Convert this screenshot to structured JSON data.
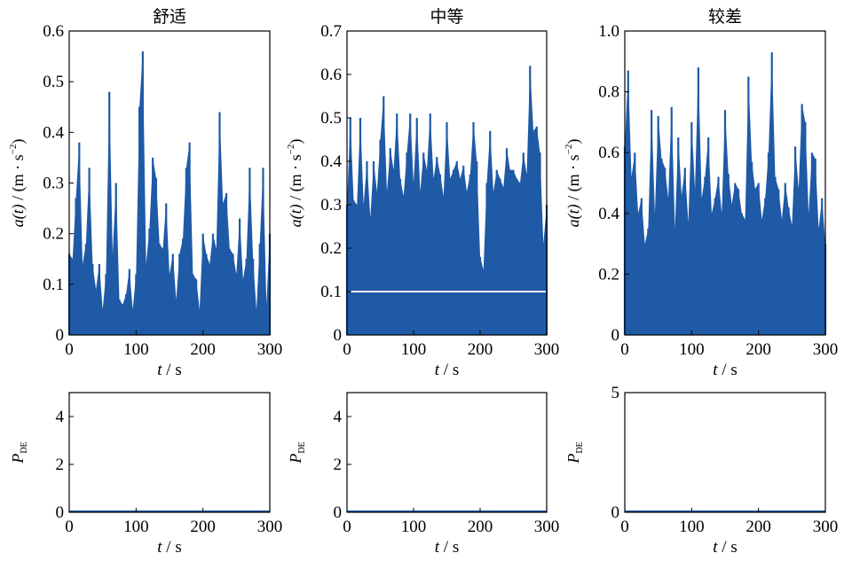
{
  "colors": {
    "series": "#1f5aa6",
    "threshold": "#ffffff",
    "axis": "#000000"
  },
  "chart_data": [
    {
      "type": "bar",
      "title": "舒适",
      "xlabel_var": "t",
      "xlabel_unit": " / s",
      "ylabel_var": "a(t)",
      "ylabel_unit": " / (m · s",
      "ylabel_sup": "−2",
      "ylabel_close": ")",
      "xlim": [
        0,
        300
      ],
      "ylim": [
        0,
        0.6
      ],
      "xticks": [
        "0",
        "100",
        "200",
        "300"
      ],
      "yticks": [
        "0",
        "0.1",
        "0.2",
        "0.3",
        "0.4",
        "0.5",
        "0.6"
      ],
      "x": [
        0,
        5,
        10,
        15,
        20,
        25,
        30,
        35,
        40,
        45,
        50,
        55,
        60,
        65,
        70,
        75,
        80,
        85,
        90,
        95,
        100,
        105,
        110,
        115,
        120,
        125,
        130,
        135,
        140,
        145,
        150,
        155,
        160,
        165,
        170,
        175,
        180,
        185,
        190,
        195,
        200,
        205,
        210,
        215,
        220,
        225,
        230,
        235,
        240,
        245,
        250,
        255,
        260,
        265,
        270,
        275,
        280,
        285,
        290,
        295,
        300
      ],
      "y": [
        0.16,
        0.15,
        0.27,
        0.38,
        0.14,
        0.18,
        0.33,
        0.14,
        0.09,
        0.14,
        0.05,
        0.12,
        0.48,
        0.16,
        0.3,
        0.07,
        0.06,
        0.08,
        0.13,
        0.05,
        0.12,
        0.45,
        0.56,
        0.14,
        0.21,
        0.35,
        0.31,
        0.18,
        0.17,
        0.26,
        0.12,
        0.16,
        0.07,
        0.16,
        0.19,
        0.33,
        0.38,
        0.12,
        0.11,
        0.05,
        0.2,
        0.16,
        0.14,
        0.2,
        0.17,
        0.44,
        0.26,
        0.28,
        0.17,
        0.16,
        0.12,
        0.23,
        0.11,
        0.15,
        0.33,
        0.15,
        0.05,
        0.18,
        0.33,
        0.06,
        0.2
      ]
    },
    {
      "type": "bar",
      "title": "中等",
      "xlabel_var": "t",
      "xlabel_unit": " / s",
      "ylabel_var": "a(t)",
      "ylabel_unit": " / (m · s",
      "ylabel_sup": "−2",
      "ylabel_close": ")",
      "xlim": [
        0,
        300
      ],
      "ylim": [
        0,
        0.7
      ],
      "xticks": [
        "0",
        "100",
        "200",
        "300"
      ],
      "yticks": [
        "0",
        "0.1",
        "0.2",
        "0.3",
        "0.4",
        "0.5",
        "0.6",
        "0.7"
      ],
      "threshold": 0.1,
      "x": [
        0,
        5,
        10,
        15,
        20,
        25,
        30,
        35,
        40,
        45,
        50,
        55,
        60,
        65,
        70,
        75,
        80,
        85,
        90,
        95,
        100,
        105,
        110,
        115,
        120,
        125,
        130,
        135,
        140,
        145,
        150,
        155,
        160,
        165,
        170,
        175,
        180,
        185,
        190,
        195,
        200,
        205,
        210,
        215,
        220,
        225,
        230,
        235,
        240,
        245,
        250,
        255,
        260,
        265,
        270,
        275,
        280,
        285,
        290,
        295,
        300
      ],
      "y": [
        0.3,
        0.5,
        0.31,
        0.3,
        0.5,
        0.3,
        0.4,
        0.27,
        0.4,
        0.33,
        0.45,
        0.55,
        0.33,
        0.43,
        0.38,
        0.51,
        0.36,
        0.32,
        0.42,
        0.51,
        0.35,
        0.5,
        0.33,
        0.42,
        0.38,
        0.51,
        0.36,
        0.41,
        0.37,
        0.32,
        0.49,
        0.36,
        0.38,
        0.4,
        0.36,
        0.39,
        0.33,
        0.37,
        0.49,
        0.4,
        0.18,
        0.15,
        0.35,
        0.47,
        0.33,
        0.38,
        0.36,
        0.34,
        0.43,
        0.38,
        0.38,
        0.36,
        0.35,
        0.42,
        0.37,
        0.62,
        0.47,
        0.48,
        0.42,
        0.21,
        0.3
      ]
    },
    {
      "type": "bar",
      "title": "较差",
      "xlabel_var": "t",
      "xlabel_unit": " / s",
      "ylabel_var": "a(t)",
      "ylabel_unit": " / (m · s",
      "ylabel_sup": "−2",
      "ylabel_close": ")",
      "xlim": [
        0,
        300
      ],
      "ylim": [
        0,
        1.0
      ],
      "xticks": [
        "0",
        "100",
        "200",
        "300"
      ],
      "yticks": [
        "0",
        "0.2",
        "0.4",
        "0.6",
        "0.8",
        "1.0"
      ],
      "x": [
        0,
        5,
        10,
        15,
        20,
        25,
        30,
        35,
        40,
        45,
        50,
        55,
        60,
        65,
        70,
        75,
        80,
        85,
        90,
        95,
        100,
        105,
        110,
        115,
        120,
        125,
        130,
        135,
        140,
        145,
        150,
        155,
        160,
        165,
        170,
        175,
        180,
        185,
        190,
        195,
        200,
        205,
        210,
        215,
        220,
        225,
        230,
        235,
        240,
        245,
        250,
        255,
        260,
        265,
        270,
        275,
        280,
        285,
        290,
        295,
        300
      ],
      "y": [
        0.62,
        0.87,
        0.52,
        0.6,
        0.4,
        0.45,
        0.3,
        0.35,
        0.74,
        0.4,
        0.72,
        0.58,
        0.55,
        0.45,
        0.75,
        0.35,
        0.65,
        0.46,
        0.55,
        0.37,
        0.7,
        0.48,
        0.88,
        0.45,
        0.52,
        0.65,
        0.4,
        0.45,
        0.52,
        0.4,
        0.74,
        0.53,
        0.43,
        0.5,
        0.48,
        0.4,
        0.38,
        0.85,
        0.57,
        0.48,
        0.5,
        0.38,
        0.45,
        0.6,
        0.93,
        0.52,
        0.48,
        0.38,
        0.5,
        0.42,
        0.36,
        0.62,
        0.48,
        0.76,
        0.7,
        0.4,
        0.6,
        0.58,
        0.35,
        0.45,
        0.3
      ]
    },
    {
      "type": "line",
      "xlabel_var": "t",
      "xlabel_unit": " / s",
      "ylabel_var": "P",
      "ylabel_sub": "DE",
      "xlim": [
        0,
        300
      ],
      "ylim": [
        0,
        5
      ],
      "xticks": [
        "0",
        "100",
        "200",
        "300"
      ],
      "yticks": [
        "0",
        "2",
        "4"
      ],
      "x": [
        0,
        300
      ],
      "y": [
        0,
        0
      ]
    },
    {
      "type": "line",
      "xlabel_var": "t",
      "xlabel_unit": " / s",
      "ylabel_var": "P",
      "ylabel_sub": "DE",
      "xlim": [
        0,
        300
      ],
      "ylim": [
        0,
        5
      ],
      "xticks": [
        "0",
        "100",
        "200",
        "300"
      ],
      "yticks": [
        "0",
        "2",
        "4"
      ],
      "x": [
        0,
        300
      ],
      "y": [
        0,
        0
      ]
    },
    {
      "type": "line",
      "xlabel_var": "t",
      "xlabel_unit": " / s",
      "ylabel_var": "P",
      "ylabel_sub": "DE",
      "xlim": [
        0,
        300
      ],
      "ylim": [
        0,
        5
      ],
      "xticks": [
        "0",
        "100",
        "200",
        "300"
      ],
      "yticks": [
        "0",
        "5"
      ],
      "x": [
        0,
        300
      ],
      "y": [
        0,
        0
      ]
    }
  ]
}
